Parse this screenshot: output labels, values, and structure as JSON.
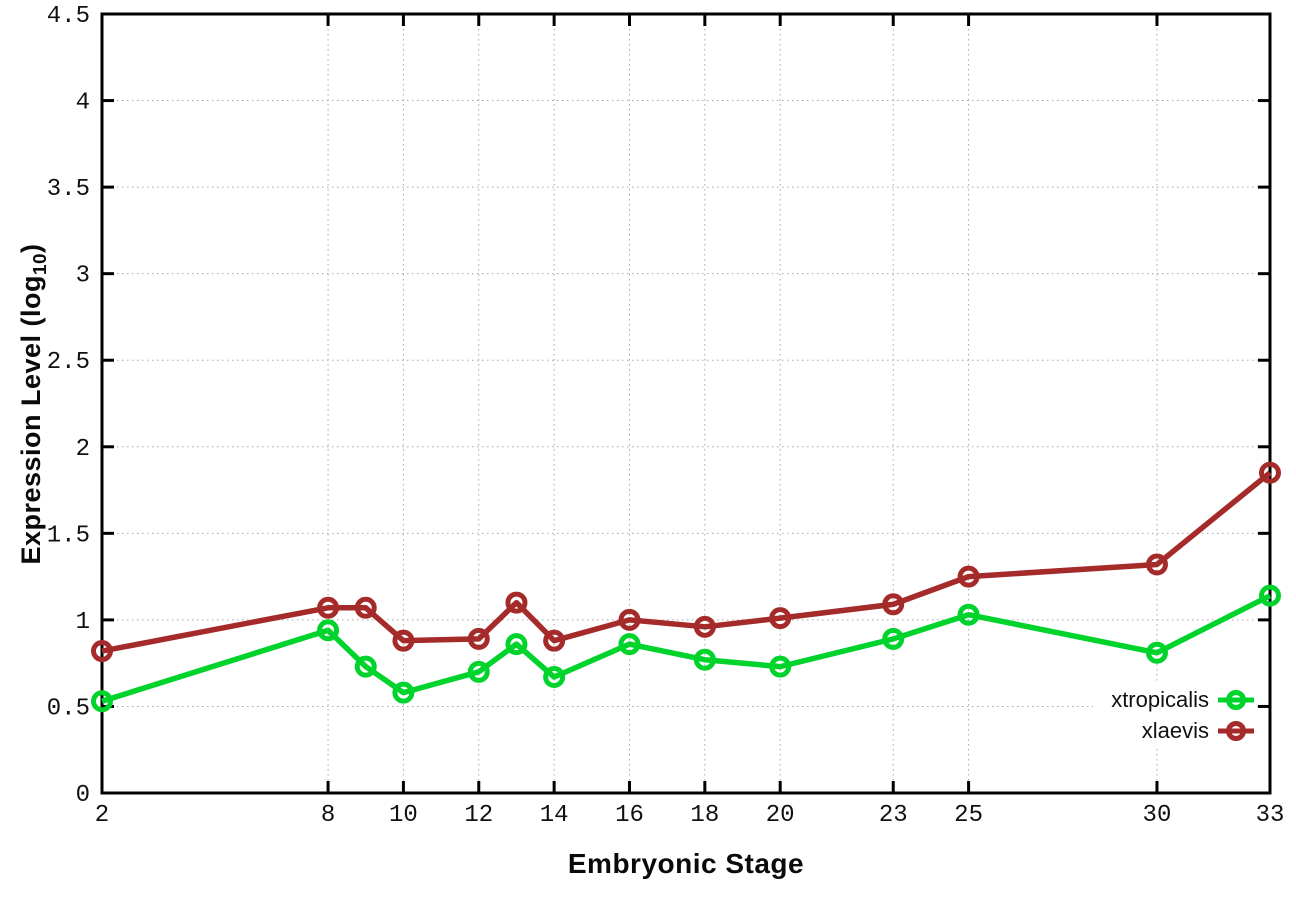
{
  "chart_data": {
    "type": "line",
    "title": "",
    "xlabel": "Embryonic Stage",
    "ylabel": "Expression Level (log10)",
    "ylabel_parts": {
      "prefix": "Expression Level (log",
      "sub": "10",
      "suffix": ")"
    },
    "x": [
      2,
      8,
      9,
      10,
      12,
      13,
      14,
      16,
      18,
      20,
      23,
      25,
      30,
      33
    ],
    "series": [
      {
        "name": "xtropicalis",
        "color": "#00d42c",
        "values": [
          0.53,
          0.94,
          0.73,
          0.58,
          0.7,
          0.86,
          0.67,
          0.86,
          0.77,
          0.73,
          0.89,
          1.03,
          0.81,
          1.14
        ]
      },
      {
        "name": "xlaevis",
        "color": "#a52a2a",
        "values": [
          0.82,
          1.07,
          1.07,
          0.88,
          0.89,
          1.1,
          0.88,
          1.0,
          0.96,
          1.01,
          1.09,
          1.25,
          1.32,
          1.85
        ]
      }
    ],
    "x_ticks": [
      2,
      8,
      10,
      12,
      14,
      16,
      18,
      20,
      23,
      25,
      30,
      33
    ],
    "y_ticks": [
      0,
      0.5,
      1,
      1.5,
      2,
      2.5,
      3,
      3.5,
      4,
      4.5
    ],
    "xlim": [
      2,
      33
    ],
    "ylim": [
      0,
      4.5
    ],
    "grid": true,
    "legend_position": "right-middle",
    "marker": "open-circle"
  },
  "styles": {
    "grid_color": "#a8a8a8",
    "axis_color": "#000000",
    "tick_text_color": "#111111"
  }
}
